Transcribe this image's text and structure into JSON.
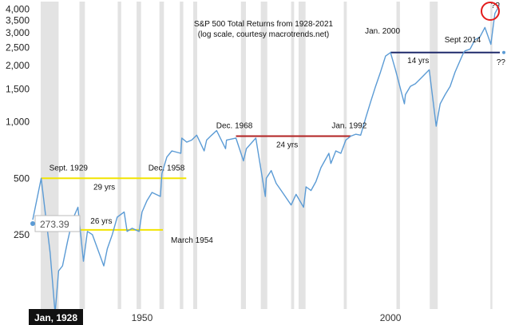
{
  "chart_data": {
    "type": "line",
    "title": "S&P 500 Total Returns from 1928-2021",
    "subtitle": "(log scale, courtesy macrotrends.net)",
    "scale": "log",
    "xlim": [
      1928,
      2022
    ],
    "ylim": [
      100,
      4400
    ],
    "yticks": [
      250,
      500,
      1000,
      1500,
      2000,
      2500,
      3000,
      3500,
      4000
    ],
    "ytick_labels": [
      "250",
      "500",
      "1,000",
      "1,500",
      "2,000",
      "2,500",
      "3,000",
      "3,500",
      "4,000"
    ],
    "xticks": [
      1950,
      2000
    ],
    "xtick_labels": [
      "1950",
      "2000"
    ],
    "grid": false,
    "series_color": "#5b9bd5",
    "recession_color": "#e3e3e3",
    "recessions": [
      [
        1929.6,
        1933.2
      ],
      [
        1937.4,
        1938.5
      ],
      [
        1945.1,
        1945.8
      ],
      [
        1948.9,
        1949.8
      ],
      [
        1953.5,
        1954.4
      ],
      [
        1957.6,
        1958.3
      ],
      [
        1960.3,
        1961.1
      ],
      [
        1969.9,
        1970.9
      ],
      [
        1973.9,
        1975.2
      ],
      [
        1980.0,
        1980.6
      ],
      [
        1981.5,
        1982.9
      ],
      [
        1990.6,
        1991.2
      ],
      [
        2001.2,
        2001.9
      ],
      [
        2007.9,
        2009.5
      ],
      [
        2020.1,
        2020.5
      ]
    ],
    "x": [
      1928,
      1929.7,
      1930.5,
      1931.5,
      1932.5,
      1933.2,
      1934,
      1935,
      1936,
      1937.1,
      1938.2,
      1939,
      1940,
      1942.3,
      1943,
      1944,
      1945,
      1946.4,
      1947,
      1948,
      1949.4,
      1950,
      1951,
      1952,
      1953.7,
      1954,
      1955,
      1956,
      1957.8,
      1958,
      1959,
      1960,
      1961,
      1962.5,
      1963,
      1964,
      1965,
      1966.8,
      1967,
      1968.9,
      1970.4,
      1971,
      1972.9,
      1974.8,
      1975,
      1976,
      1977,
      1978,
      1980,
      1981,
      1982.5,
      1983,
      1984,
      1985,
      1986,
      1987.6,
      1988,
      1989,
      1990,
      1991,
      1992,
      1993,
      1994,
      1995,
      1996,
      1997,
      1998,
      1999,
      2000,
      2001,
      2002.8,
      2003,
      2004,
      2005,
      2006,
      2007.8,
      2009.2,
      2010,
      2011,
      2012,
      2013,
      2014.7,
      2015,
      2016,
      2017,
      2018,
      2019,
      2020.2,
      2021,
      2021.9
    ],
    "values": [
      300,
      500,
      330,
      200,
      95,
      160,
      170,
      230,
      300,
      350,
      180,
      260,
      250,
      170,
      210,
      250,
      310,
      330,
      260,
      270,
      260,
      330,
      380,
      420,
      400,
      530,
      650,
      700,
      680,
      820,
      780,
      800,
      850,
      700,
      800,
      850,
      900,
      720,
      800,
      820,
      620,
      720,
      820,
      400,
      500,
      550,
      470,
      430,
      360,
      410,
      350,
      450,
      430,
      480,
      570,
      680,
      600,
      700,
      680,
      800,
      840,
      860,
      850,
      1050,
      1280,
      1550,
      1850,
      2250,
      2350,
      1900,
      1250,
      1400,
      1550,
      1600,
      1700,
      1900,
      950,
      1250,
      1400,
      1550,
      1850,
      2350,
      2400,
      2450,
      2750,
      2850,
      3200,
      2600,
      3800,
      4200
    ],
    "annotations": [
      {
        "text": "Sept. 1929",
        "x": 1929.7,
        "y": 500
      },
      {
        "text": "Dec. 1958",
        "x": 1958.9,
        "y": 500
      },
      {
        "text": "29 yrs",
        "x": 1944,
        "y": 500
      },
      {
        "text": "26 yrs",
        "x": 1941,
        "y": 265
      },
      {
        "text": "March 1954",
        "x": 1954.2,
        "y": 265
      },
      {
        "text": "Dec. 1968",
        "x": 1968.9,
        "y": 840
      },
      {
        "text": "Jan. 1992",
        "x": 1992,
        "y": 840
      },
      {
        "text": "24 yrs",
        "x": 1980,
        "y": 840
      },
      {
        "text": "Jan. 2000",
        "x": 2000,
        "y": 2350
      },
      {
        "text": "Sept 2014",
        "x": 2014.7,
        "y": 2350
      },
      {
        "text": "14 yrs",
        "x": 2007.5,
        "y": 2350
      },
      {
        "text": "??",
        "x": 2021.9,
        "y": 2350
      },
      {
        "text": "??",
        "x": 2021.9,
        "y": 4300
      }
    ],
    "reference_lines": [
      {
        "x1": 1929.7,
        "x2": 1958.9,
        "y": 500,
        "color": "#f2e400"
      },
      {
        "x1": 1930,
        "x2": 1954.2,
        "y": 265,
        "color": "#f2e400"
      },
      {
        "x1": 1968.9,
        "x2": 1992,
        "y": 840,
        "color": "#b22222"
      },
      {
        "x1": 2000,
        "x2": 2022,
        "y": 2350,
        "color": "#1f2a6b"
      }
    ],
    "highlight_color": "#e31b1b",
    "readout_value": "273.39",
    "start_label": "Jan, 1928"
  }
}
